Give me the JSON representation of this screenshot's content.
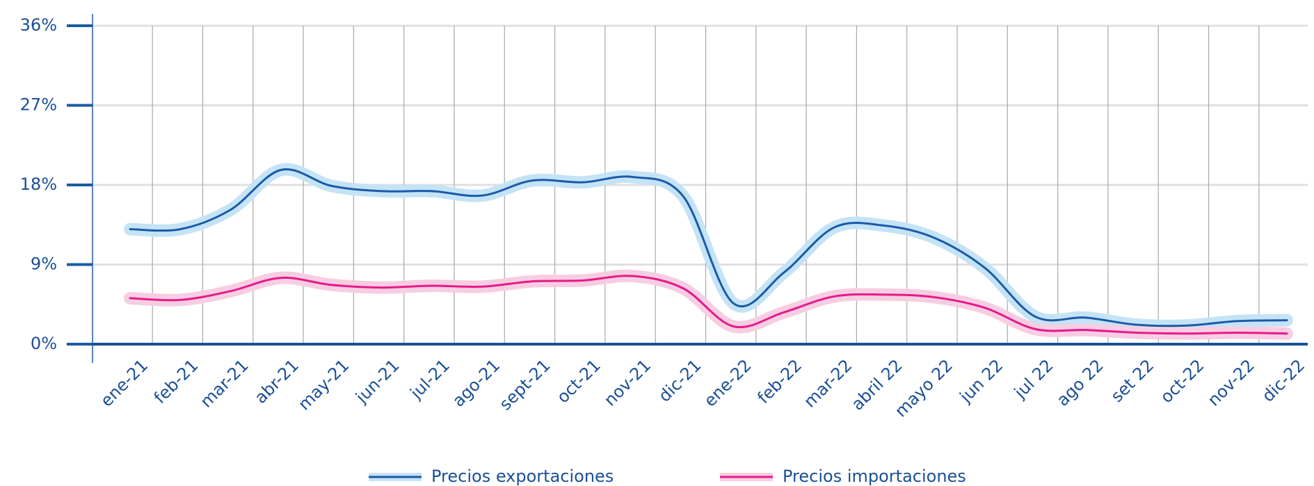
{
  "chart_data": {
    "type": "line",
    "categories": [
      "ene-21",
      "feb-21",
      "mar-21",
      "abr-21",
      "may-21",
      "jun-21",
      "jul-21",
      "ago-21",
      "sept-21",
      "oct-21",
      "nov-21",
      "dic-21",
      "ene-22",
      "feb-22",
      "mar-22",
      "abril 22",
      "mayo 22",
      "jun 22",
      "jul 22",
      "ago 22",
      "set 22",
      "oct-22",
      "nov-22",
      "dic-22"
    ],
    "series": [
      {
        "name": "Precios exportaciones",
        "color": "#1a5aa6",
        "glow": "#c5e3f6",
        "values": [
          13.0,
          13.0,
          15.2,
          19.7,
          17.9,
          17.3,
          17.3,
          16.8,
          18.5,
          18.3,
          18.9,
          16.7,
          4.6,
          8.1,
          13.2,
          13.4,
          12.0,
          8.6,
          3.1,
          3.0,
          2.2,
          2.1,
          2.6,
          2.7
        ]
      },
      {
        "name": "Precios importaciones",
        "color": "#e6198c",
        "glow": "#f7cde2",
        "values": [
          5.2,
          5.0,
          6.0,
          7.5,
          6.7,
          6.4,
          6.6,
          6.5,
          7.1,
          7.2,
          7.7,
          6.3,
          2.0,
          3.6,
          5.4,
          5.6,
          5.3,
          4.1,
          1.7,
          1.6,
          1.3,
          1.2,
          1.3,
          1.2
        ]
      }
    ],
    "ylim": [
      0,
      36
    ],
    "yticks": [
      {
        "value": 0,
        "label": "0%"
      },
      {
        "value": 9,
        "label": "9%"
      },
      {
        "value": 18,
        "label": "18%"
      },
      {
        "value": 27,
        "label": "27%"
      },
      {
        "value": 36,
        "label": "36%"
      }
    ],
    "grid": true
  }
}
